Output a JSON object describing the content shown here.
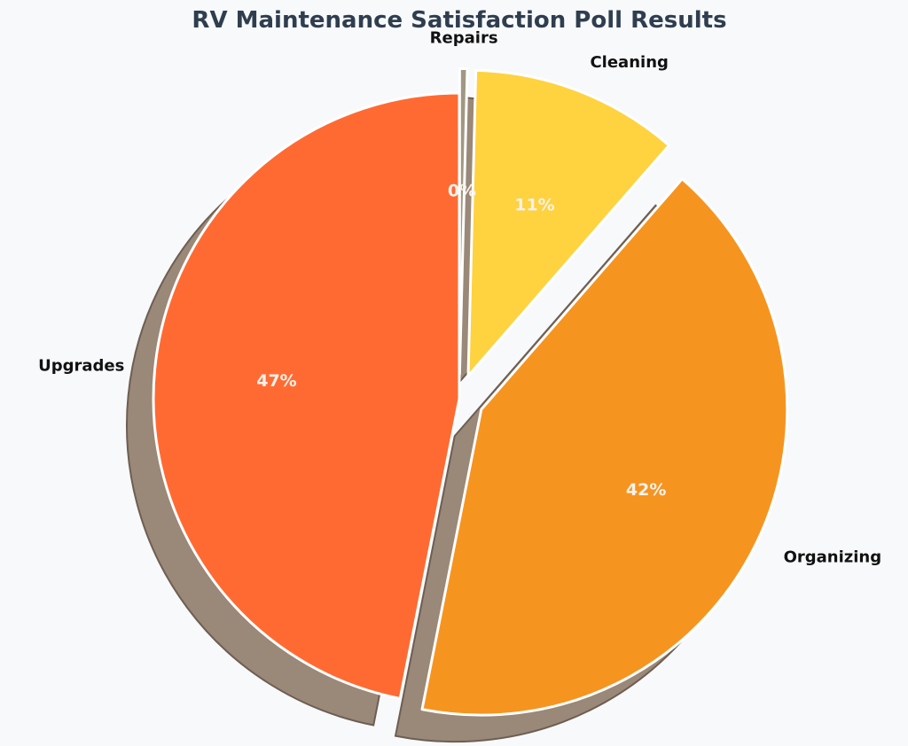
{
  "chart_data": {
    "type": "pie",
    "title": "RV Maintenance Satisfaction Poll Results",
    "start_angle_deg": 90,
    "direction": "clockwise",
    "shadow": true,
    "slices": [
      {
        "label": "Repairs",
        "value": 0.4,
        "pct_label": "0%",
        "color": "#a09882",
        "explode": 0.08
      },
      {
        "label": "Cleaning",
        "value": 11.0,
        "pct_label": "11%",
        "color": "#ffd23f",
        "explode": 0.08
      },
      {
        "label": "Organizing",
        "value": 41.7,
        "pct_label": "42%",
        "color": "#f69420",
        "explode": 0.08
      },
      {
        "label": "Upgrades",
        "value": 46.9,
        "pct_label": "47%",
        "color": "#ff6a33",
        "explode": 0.0
      }
    ]
  }
}
